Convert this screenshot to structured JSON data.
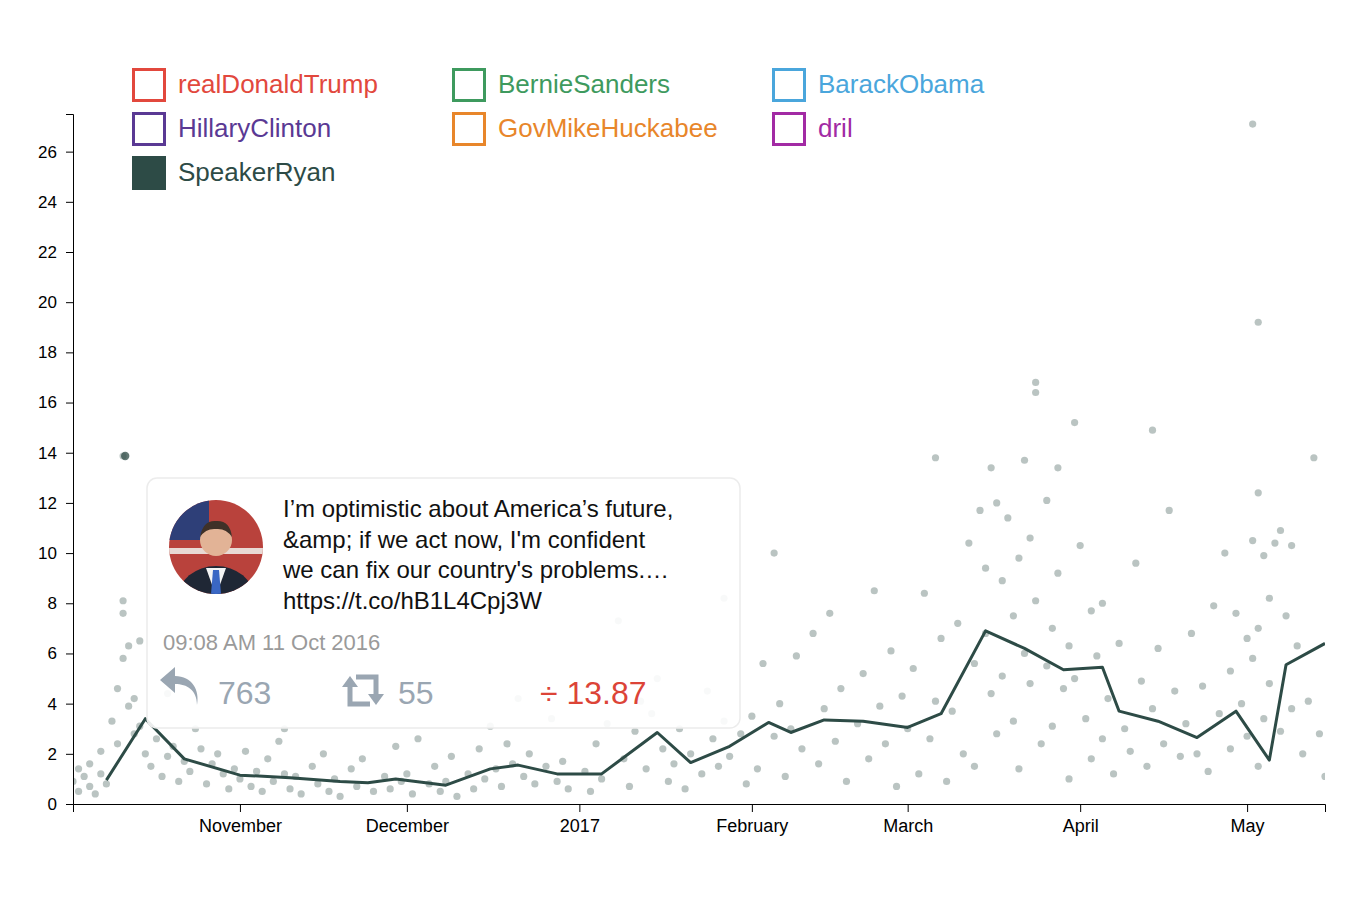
{
  "chart_data": {
    "type": "scatter",
    "legend": "top-left",
    "grid": false,
    "xlim": [
      "2016-10-02",
      "2017-05-15"
    ],
    "xticks": [
      {
        "value": "2016-11-01",
        "label": "November"
      },
      {
        "value": "2016-12-01",
        "label": "December"
      },
      {
        "value": "2017-01-01",
        "label": "2017"
      },
      {
        "value": "2017-02-01",
        "label": "February"
      },
      {
        "value": "2017-03-01",
        "label": "March"
      },
      {
        "value": "2017-04-01",
        "label": "April"
      },
      {
        "value": "2017-05-01",
        "label": "May"
      }
    ],
    "ylim": [
      0,
      27.5
    ],
    "yticks": [
      0,
      2,
      4,
      6,
      8,
      10,
      12,
      14,
      16,
      18,
      20,
      22,
      24,
      26
    ],
    "series": [
      {
        "name": "realDonaldTrump",
        "color": "#e2483d"
      },
      {
        "name": "BernieSanders",
        "color": "#3e9a5e"
      },
      {
        "name": "BarackObama",
        "color": "#4aa6dc"
      },
      {
        "name": "HillaryClinton",
        "color": "#5a3994"
      },
      {
        "name": "GovMikeHuckabee",
        "color": "#e8862a"
      },
      {
        "name": "dril",
        "color": "#a22aa4"
      },
      {
        "name": "SpeakerRyan",
        "color": "#2d4b46",
        "type": "scatter",
        "x": [
          "2016-10-02",
          "2016-10-03",
          "2016-10-03",
          "2016-10-04",
          "2016-10-05",
          "2016-10-05",
          "2016-10-06",
          "2016-10-07",
          "2016-10-07",
          "2016-10-08",
          "2016-10-09",
          "2016-10-10",
          "2016-10-10",
          "2016-10-11",
          "2016-10-11",
          "2016-10-11",
          "2016-10-11",
          "2016-10-12",
          "2016-10-12",
          "2016-10-13",
          "2016-10-13",
          "2016-10-14",
          "2016-10-14",
          "2016-10-15",
          "2016-10-16",
          "2016-10-17",
          "2016-10-18",
          "2016-10-19",
          "2016-10-19",
          "2016-10-20",
          "2016-10-21",
          "2016-10-22",
          "2016-10-23",
          "2016-10-24",
          "2016-10-25",
          "2016-10-26",
          "2016-10-27",
          "2016-10-28",
          "2016-10-29",
          "2016-10-30",
          "2016-10-31",
          "2016-11-01",
          "2016-11-02",
          "2016-11-03",
          "2016-11-04",
          "2016-11-05",
          "2016-11-06",
          "2016-11-07",
          "2016-11-08",
          "2016-11-09",
          "2016-11-09",
          "2016-11-10",
          "2016-11-11",
          "2016-11-12",
          "2016-11-14",
          "2016-11-15",
          "2016-11-16",
          "2016-11-17",
          "2016-11-18",
          "2016-11-19",
          "2016-11-21",
          "2016-11-22",
          "2016-11-23",
          "2016-11-25",
          "2016-11-27",
          "2016-11-28",
          "2016-11-29",
          "2016-11-30",
          "2016-12-01",
          "2016-12-02",
          "2016-12-03",
          "2016-12-05",
          "2016-12-06",
          "2016-12-07",
          "2016-12-08",
          "2016-12-09",
          "2016-12-10",
          "2016-12-12",
          "2016-12-13",
          "2016-12-14",
          "2016-12-15",
          "2016-12-16",
          "2016-12-17",
          "2016-12-18",
          "2016-12-19",
          "2016-12-20",
          "2016-12-21",
          "2016-12-22",
          "2016-12-23",
          "2016-12-24",
          "2016-12-26",
          "2016-12-27",
          "2016-12-28",
          "2016-12-29",
          "2016-12-30",
          "2017-01-02",
          "2017-01-03",
          "2017-01-04",
          "2017-01-05",
          "2017-01-06",
          "2017-01-08",
          "2017-01-09",
          "2017-01-10",
          "2017-01-11",
          "2017-01-12",
          "2017-01-13",
          "2017-01-14",
          "2017-01-15",
          "2017-01-16",
          "2017-01-17",
          "2017-01-18",
          "2017-01-19",
          "2017-01-20",
          "2017-01-21",
          "2017-01-23",
          "2017-01-24",
          "2017-01-25",
          "2017-01-26",
          "2017-01-27",
          "2017-01-27",
          "2017-01-28",
          "2017-01-30",
          "2017-01-31",
          "2017-02-01",
          "2017-02-02",
          "2017-02-03",
          "2017-02-05",
          "2017-02-05",
          "2017-02-06",
          "2017-02-07",
          "2017-02-08",
          "2017-02-09",
          "2017-02-10",
          "2017-02-12",
          "2017-02-13",
          "2017-02-14",
          "2017-02-15",
          "2017-02-16",
          "2017-02-17",
          "2017-02-18",
          "2017-02-20",
          "2017-02-21",
          "2017-02-22",
          "2017-02-23",
          "2017-02-24",
          "2017-02-25",
          "2017-02-26",
          "2017-02-27",
          "2017-02-28",
          "2017-03-01",
          "2017-03-02",
          "2017-03-03",
          "2017-03-04",
          "2017-03-05",
          "2017-03-06",
          "2017-03-06",
          "2017-03-07",
          "2017-03-08",
          "2017-03-09",
          "2017-03-10",
          "2017-03-11",
          "2017-03-12",
          "2017-03-13",
          "2017-03-13",
          "2017-03-14",
          "2017-03-15",
          "2017-03-15",
          "2017-03-16",
          "2017-03-16",
          "2017-03-17",
          "2017-03-17",
          "2017-03-18",
          "2017-03-18",
          "2017-03-19",
          "2017-03-20",
          "2017-03-20",
          "2017-03-21",
          "2017-03-21",
          "2017-03-22",
          "2017-03-22",
          "2017-03-23",
          "2017-03-23",
          "2017-03-24",
          "2017-03-24",
          "2017-03-24",
          "2017-03-25",
          "2017-03-26",
          "2017-03-26",
          "2017-03-27",
          "2017-03-27",
          "2017-03-28",
          "2017-03-28",
          "2017-03-29",
          "2017-03-30",
          "2017-03-30",
          "2017-03-31",
          "2017-03-31",
          "2017-04-01",
          "2017-04-02",
          "2017-04-03",
          "2017-04-03",
          "2017-04-04",
          "2017-04-05",
          "2017-04-05",
          "2017-04-06",
          "2017-04-07",
          "2017-04-08",
          "2017-04-09",
          "2017-04-10",
          "2017-04-11",
          "2017-04-12",
          "2017-04-13",
          "2017-04-14",
          "2017-04-14",
          "2017-04-15",
          "2017-04-16",
          "2017-04-17",
          "2017-04-18",
          "2017-04-19",
          "2017-04-20",
          "2017-04-21",
          "2017-04-22",
          "2017-04-23",
          "2017-04-24",
          "2017-04-25",
          "2017-04-26",
          "2017-04-27",
          "2017-04-28",
          "2017-04-28",
          "2017-04-29",
          "2017-04-30",
          "2017-05-01",
          "2017-05-01",
          "2017-05-02",
          "2017-05-02",
          "2017-05-02",
          "2017-05-03",
          "2017-05-03",
          "2017-05-03",
          "2017-05-03",
          "2017-05-04",
          "2017-05-04",
          "2017-05-05",
          "2017-05-05",
          "2017-05-06",
          "2017-05-07",
          "2017-05-07",
          "2017-05-08",
          "2017-05-09",
          "2017-05-09",
          "2017-05-10",
          "2017-05-11",
          "2017-05-12",
          "2017-05-13",
          "2017-05-14",
          "2017-05-15"
        ],
        "values": [
          0.9,
          1.4,
          0.5,
          1.1,
          0.7,
          1.6,
          0.4,
          1.2,
          2.1,
          0.8,
          3.3,
          4.6,
          2.4,
          13.87,
          8.1,
          7.6,
          5.8,
          6.3,
          3.9,
          4.2,
          2.8,
          6.5,
          3.1,
          2.0,
          1.5,
          2.6,
          1.1,
          4.4,
          1.9,
          2.3,
          0.9,
          1.7,
          1.3,
          3.0,
          2.2,
          0.8,
          1.6,
          2.0,
          1.2,
          0.6,
          1.4,
          1.0,
          2.1,
          0.7,
          1.3,
          0.5,
          1.8,
          0.9,
          2.5,
          1.2,
          3.0,
          0.6,
          1.1,
          0.4,
          1.5,
          0.8,
          2.0,
          0.5,
          1.0,
          0.3,
          1.4,
          0.7,
          1.8,
          0.5,
          1.1,
          0.6,
          2.3,
          0.9,
          1.2,
          0.4,
          2.6,
          0.8,
          1.5,
          0.5,
          0.9,
          1.9,
          0.3,
          1.2,
          0.6,
          2.2,
          1.0,
          3.1,
          1.4,
          0.7,
          2.4,
          1.6,
          4.2,
          1.1,
          2.0,
          0.8,
          1.5,
          3.4,
          0.9,
          1.7,
          0.6,
          1.3,
          0.5,
          2.4,
          1.0,
          3.2,
          7.3,
          1.8,
          0.7,
          2.9,
          4.1,
          1.4,
          3.6,
          5.0,
          2.2,
          0.9,
          1.6,
          3.0,
          0.6,
          2.0,
          1.2,
          4.5,
          2.6,
          1.5,
          8.2,
          3.3,
          1.9,
          2.8,
          0.8,
          3.5,
          1.4,
          5.6,
          10.0,
          2.7,
          4.0,
          1.1,
          3.0,
          5.9,
          2.2,
          6.8,
          1.6,
          3.8,
          7.6,
          2.5,
          4.6,
          0.9,
          3.2,
          5.2,
          1.8,
          8.5,
          3.9,
          2.4,
          6.1,
          0.7,
          4.3,
          3.0,
          5.4,
          1.2,
          8.4,
          2.6,
          13.8,
          4.1,
          6.6,
          0.9,
          3.7,
          7.2,
          2.0,
          10.4,
          5.6,
          1.5,
          11.7,
          9.4,
          6.8,
          13.4,
          4.4,
          12.0,
          2.8,
          8.9,
          5.1,
          11.4,
          7.5,
          3.3,
          9.8,
          1.4,
          13.7,
          6.0,
          4.8,
          10.6,
          16.8,
          16.4,
          8.1,
          2.4,
          12.1,
          5.5,
          7.0,
          3.1,
          9.2,
          13.4,
          4.6,
          6.3,
          1.0,
          15.2,
          5.0,
          10.3,
          3.4,
          7.7,
          1.8,
          5.9,
          2.6,
          8.0,
          4.2,
          1.2,
          6.4,
          3.0,
          2.1,
          9.6,
          4.9,
          1.5,
          14.9,
          3.8,
          6.2,
          2.4,
          11.7,
          4.5,
          1.9,
          3.2,
          6.8,
          2.0,
          4.7,
          1.3,
          7.9,
          3.6,
          10.0,
          5.3,
          2.2,
          7.6,
          4.0,
          6.6,
          2.7,
          27.1,
          10.5,
          5.8,
          19.2,
          12.4,
          7.0,
          1.5,
          9.9,
          3.4,
          8.2,
          4.8,
          10.4,
          10.9,
          2.9,
          7.5,
          10.3,
          3.8,
          6.3,
          2.0,
          4.1,
          13.8,
          2.8,
          1.1
        ]
      },
      {
        "color": "#2d4b46",
        "type": "line",
        "x": [
          "2016-10-08",
          "2016-10-15",
          "2016-10-22",
          "2016-11-01",
          "2016-11-10",
          "2016-11-19",
          "2016-11-24",
          "2016-11-29",
          "2016-12-08",
          "2016-12-16",
          "2016-12-21",
          "2016-12-28",
          "2017-01-05",
          "2017-01-15",
          "2017-01-21",
          "2017-01-28",
          "2017-02-04",
          "2017-02-08",
          "2017-02-14",
          "2017-02-21",
          "2017-03-01",
          "2017-03-07",
          "2017-03-15",
          "2017-03-22",
          "2017-03-29",
          "2017-04-05",
          "2017-04-08",
          "2017-04-15",
          "2017-04-22",
          "2017-04-29",
          "2017-05-05",
          "2017-05-08",
          "2017-05-15"
        ],
        "values": [
          0.95,
          3.4,
          1.8,
          1.15,
          1.05,
          0.9,
          0.85,
          1.0,
          0.75,
          1.4,
          1.55,
          1.2,
          1.2,
          2.85,
          1.65,
          2.3,
          3.25,
          2.85,
          3.35,
          3.3,
          3.05,
          3.6,
          6.9,
          6.2,
          5.35,
          5.45,
          3.7,
          3.3,
          2.65,
          3.7,
          1.75,
          5.55,
          6.4
        ]
      }
    ],
    "annotation": {
      "text_lines": [
        "I’m optimistic about America’s future,",
        "&amp; if we act now, I'm confident",
        "we can fix our country's problems.…",
        "https://t.co/hB1L4Cpj3W"
      ],
      "time": "09:08 AM 11 Oct 2016",
      "replies": 763,
      "retweets": 55,
      "ratio": {
        "value": 13.87,
        "label": "÷ 13.87"
      }
    }
  }
}
